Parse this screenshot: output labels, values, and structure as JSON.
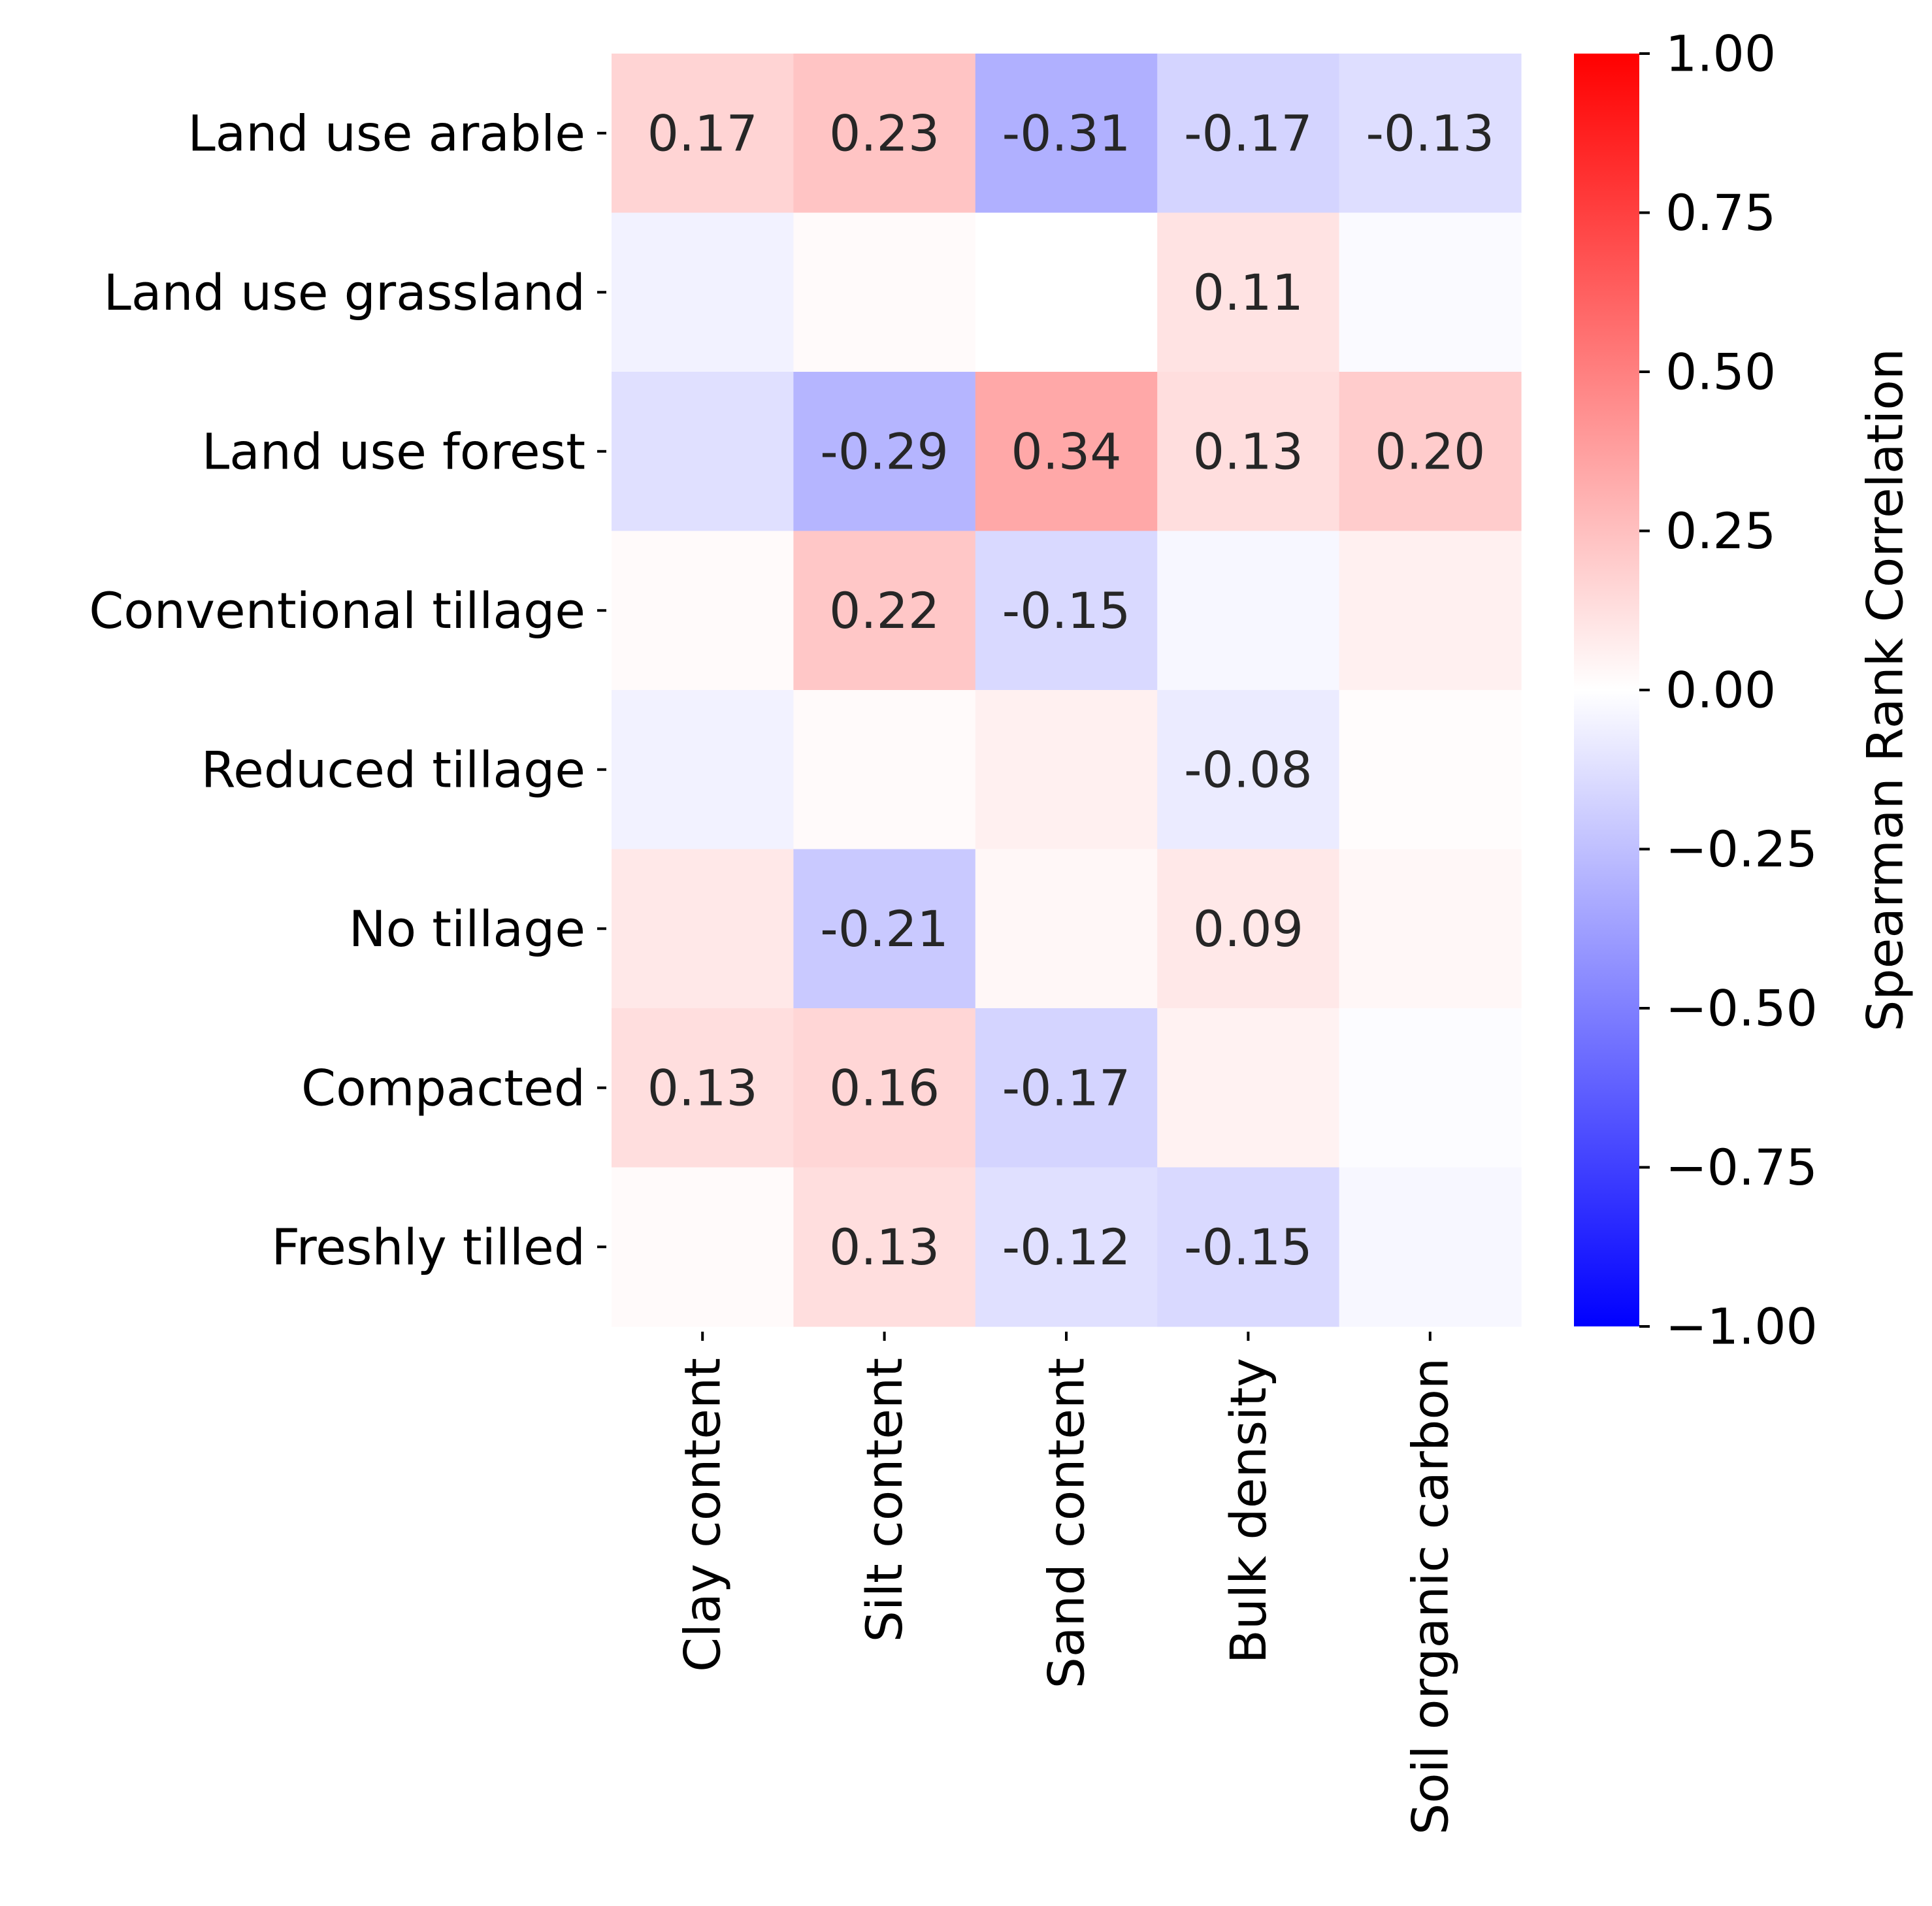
{
  "chart_data": {
    "type": "heatmap",
    "rows": [
      "Land use arable",
      "Land use grassland",
      "Land use forest",
      "Conventional tillage",
      "Reduced tillage",
      "No tillage",
      "Compacted",
      "Freshly tilled"
    ],
    "columns": [
      "Clay content",
      "Silt content",
      "Sand content",
      "Bulk density",
      "Soil organic carbon"
    ],
    "values": [
      [
        0.17,
        0.23,
        -0.31,
        -0.17,
        -0.13
      ],
      [
        -0.05,
        0.02,
        0.0,
        0.11,
        -0.02
      ],
      [
        -0.12,
        -0.29,
        0.34,
        0.13,
        0.2
      ],
      [
        0.02,
        0.22,
        -0.15,
        -0.03,
        0.06
      ],
      [
        -0.05,
        0.02,
        0.06,
        -0.08,
        0.01
      ],
      [
        0.09,
        -0.21,
        0.03,
        0.09,
        0.03
      ],
      [
        0.13,
        0.16,
        -0.17,
        0.05,
        -0.01
      ],
      [
        0.02,
        0.13,
        -0.12,
        -0.15,
        -0.03
      ]
    ],
    "annotations": [
      [
        "0.17",
        "0.23",
        "-0.31",
        "-0.17",
        "-0.13"
      ],
      [
        "",
        "",
        "",
        "0.11",
        ""
      ],
      [
        "",
        "-0.29",
        "0.34",
        "0.13",
        "0.20"
      ],
      [
        "",
        "0.22",
        "-0.15",
        "",
        ""
      ],
      [
        "",
        "",
        "",
        "-0.08",
        ""
      ],
      [
        "",
        "-0.21",
        "",
        "0.09",
        ""
      ],
      [
        "0.13",
        "0.16",
        "-0.17",
        "",
        ""
      ],
      [
        "",
        "0.13",
        "-0.12",
        "-0.15",
        ""
      ]
    ],
    "colormap": {
      "name": "bwr",
      "low": "#0000ff",
      "mid": "#ffffff",
      "high": "#ff0000"
    },
    "vmin": -1.0,
    "vmax": 1.0,
    "colorbar": {
      "label": "Spearman Rank Correlation",
      "ticks": [
        1.0,
        0.75,
        0.5,
        0.25,
        0.0,
        -0.25,
        -0.5,
        -0.75,
        -1.0
      ],
      "tick_labels": [
        "1.00",
        "0.75",
        "0.50",
        "0.25",
        "0.00",
        "−0.25",
        "−0.50",
        "−0.75",
        "−1.00"
      ]
    },
    "title": "",
    "xlabel": "",
    "ylabel": ""
  }
}
